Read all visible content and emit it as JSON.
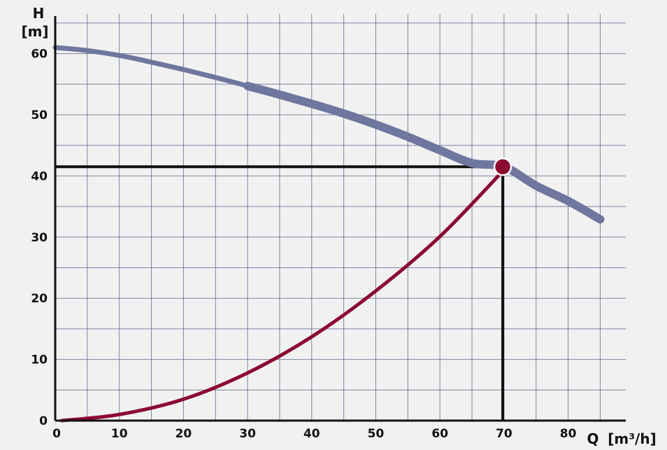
{
  "chart_data": {
    "type": "line",
    "x_axis": {
      "label": "Q",
      "unit": "[m³/h]",
      "ticks": [
        0,
        10,
        20,
        30,
        40,
        50,
        60,
        70,
        80
      ],
      "range": [
        0,
        87
      ]
    },
    "y_axis": {
      "label": "H",
      "unit": "[m]",
      "ticks": [
        0,
        10,
        20,
        30,
        40,
        50,
        60
      ],
      "range": [
        0,
        66
      ]
    },
    "grid": true,
    "series": [
      {
        "curve": "pump",
        "color": "#6f779e",
        "x": [
          0,
          5,
          10,
          15,
          20,
          25,
          30,
          35,
          40,
          45,
          50,
          55,
          60,
          65,
          70,
          75,
          80,
          85
        ],
        "y": [
          61,
          60.5,
          59.7,
          58.6,
          57.4,
          56.1,
          54.7,
          53.3,
          51.8,
          50.2,
          48.4,
          46.4,
          44.2,
          42.1,
          41.5,
          38.4,
          35.9,
          32.9
        ]
      },
      {
        "curve": "system",
        "color": "#8b0a32",
        "x": [
          1,
          10,
          20,
          30,
          40,
          50,
          60,
          70
        ],
        "y": [
          0,
          1,
          3.5,
          7.8,
          13.7,
          21.2,
          30.1,
          41
        ]
      }
    ],
    "operating_point": {
      "x": 69.8,
      "y": 41.5,
      "color": "#8b0a32"
    }
  }
}
